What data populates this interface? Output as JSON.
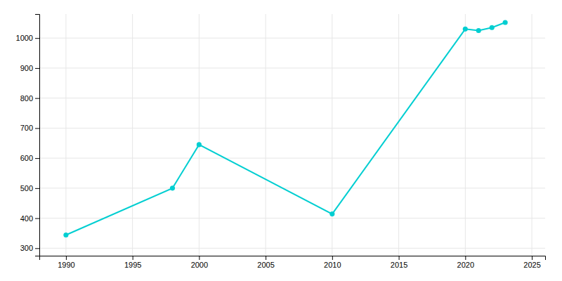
{
  "chart_data": {
    "type": "line",
    "x": [
      1990,
      1998,
      2000,
      2010,
      2020,
      2021,
      2022,
      2023
    ],
    "values": [
      344,
      500,
      645,
      414,
      1030,
      1025,
      1035,
      1052
    ],
    "color": "#00CED1",
    "marker": "circle",
    "xlim": [
      1988,
      2026
    ],
    "ylim": [
      275,
      1080
    ],
    "xticks": [
      1990,
      1995,
      2000,
      2005,
      2010,
      2015,
      2020,
      2025
    ],
    "yticks": [
      300,
      400,
      500,
      600,
      700,
      800,
      900,
      1000
    ],
    "grid": true
  }
}
